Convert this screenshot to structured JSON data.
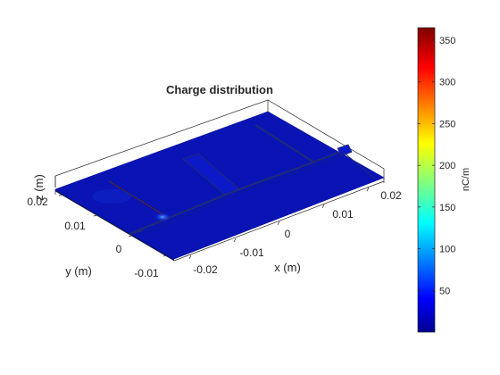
{
  "chart_data": {
    "type": "heatmap",
    "title": "Charge distribution",
    "xlabel": "x (m)",
    "ylabel": "y (m)",
    "zlabel": "z (m)",
    "x_ticks": [
      "-0.02",
      "-0.01",
      "0",
      "0.01",
      "0.02"
    ],
    "y_ticks": [
      "-0.01",
      "0",
      "0.01",
      "0.02"
    ],
    "colorbar": {
      "label": "nC/m",
      "ticks": [
        "50",
        "100",
        "150",
        "200",
        "250",
        "300",
        "350"
      ],
      "tick_values": [
        50,
        100,
        150,
        200,
        250,
        300,
        350
      ],
      "range": [
        0,
        365
      ],
      "colormap": "jet"
    },
    "description": "",
    "grid": false
  },
  "colors": {
    "substrate": "#0a14b4",
    "substrate_dark": "#06109a",
    "feed_line": "#1f2a78",
    "hotspot": "#3f8cff",
    "axis": "#262626"
  }
}
